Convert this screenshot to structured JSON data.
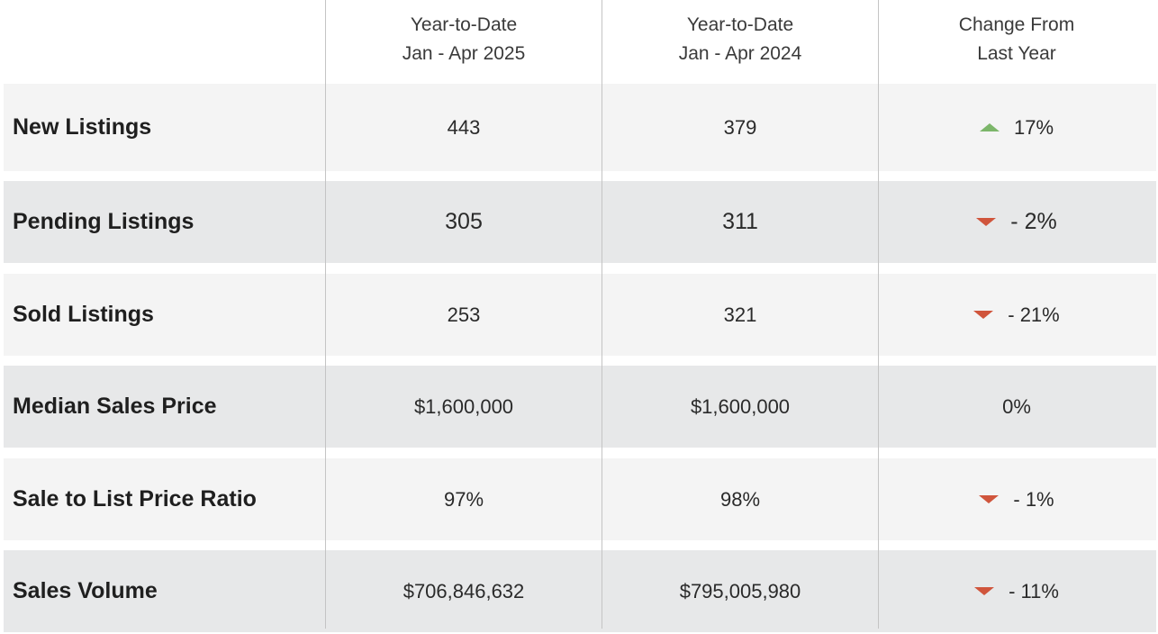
{
  "header": {
    "col1": {
      "line1": "Year-to-Date",
      "line2": "Jan - Apr 2025"
    },
    "col2": {
      "line1": "Year-to-Date",
      "line2": "Jan - Apr 2024"
    },
    "col3": {
      "line1": "Change From",
      "line2": "Last Year"
    }
  },
  "colors": {
    "up": "#7cb66a",
    "down": "#d0553c",
    "row_light": "#f4f4f4",
    "row_dark": "#e7e8e9"
  },
  "rows": [
    {
      "label": "New Listings",
      "ytd_2025": "443",
      "ytd_2024": "379",
      "change": "17%",
      "direction": "up"
    },
    {
      "label": "Pending Listings",
      "ytd_2025": "305",
      "ytd_2024": "311",
      "change": "- 2%",
      "direction": "down"
    },
    {
      "label": "Sold Listings",
      "ytd_2025": "253",
      "ytd_2024": "321",
      "change": "- 21%",
      "direction": "down"
    },
    {
      "label": "Median Sales Price",
      "ytd_2025": "$1,600,000",
      "ytd_2024": "$1,600,000",
      "change": "0%",
      "direction": "none"
    },
    {
      "label": "Sale to List Price Ratio",
      "ytd_2025": "97%",
      "ytd_2024": "98%",
      "change": "- 1%",
      "direction": "down"
    },
    {
      "label": "Sales Volume",
      "ytd_2025": "$706,846,632",
      "ytd_2024": "$795,005,980",
      "change": "- 11%",
      "direction": "down"
    }
  ]
}
